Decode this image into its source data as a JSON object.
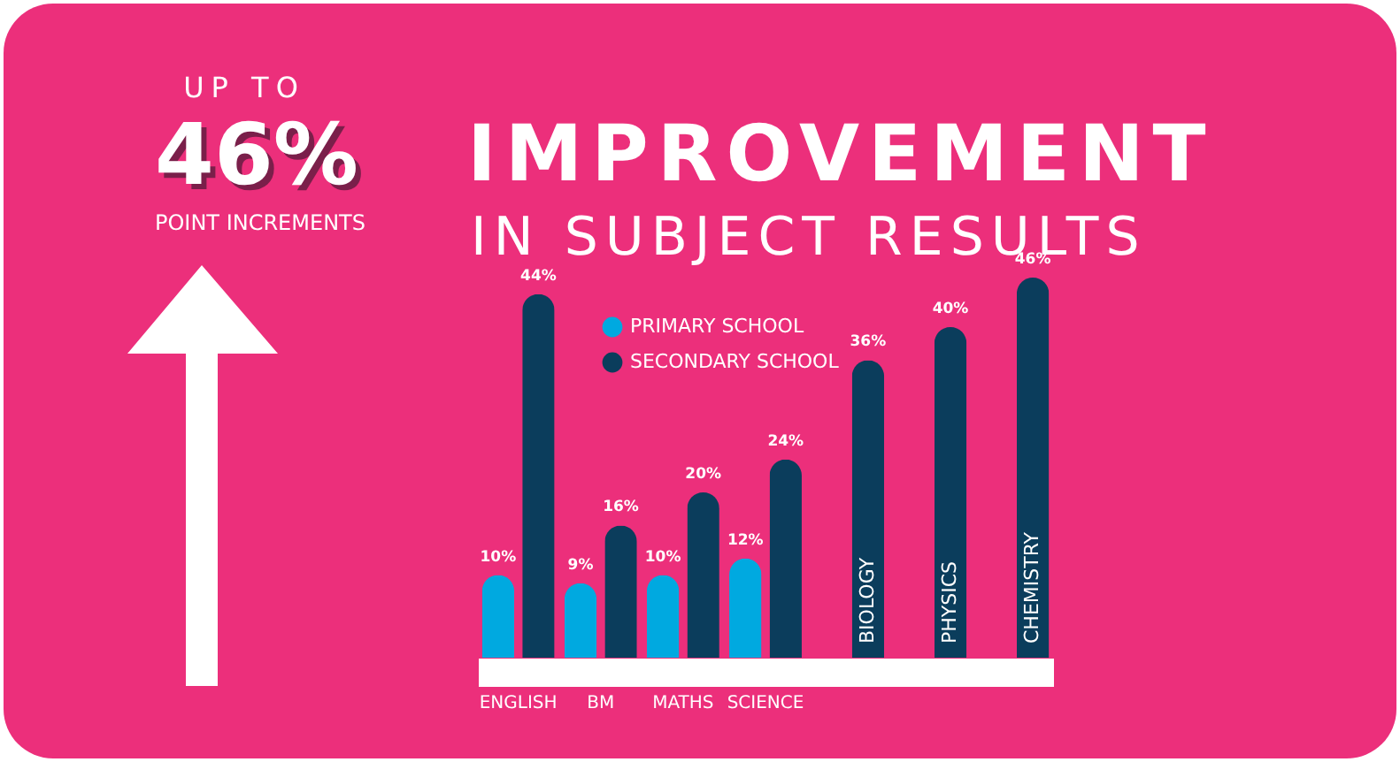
{
  "chart_data": {
    "type": "bar",
    "title": "IMPROVEMENT",
    "subtitle": "IN SUBJECT RESULTS",
    "annotations": [
      "UP TO",
      "46%",
      "POINT INCREMENTS"
    ],
    "categories": [
      "ENGLISH",
      "BM",
      "MATHS",
      "SCIENCE",
      "BIOLOGY",
      "PHYSICS",
      "CHEMISTRY"
    ],
    "series": [
      {
        "name": "PRIMARY SCHOOL",
        "color": "#00a9e0",
        "values": [
          10,
          9,
          10,
          12,
          null,
          null,
          null
        ],
        "value_labels": [
          "10%",
          "9%",
          "10%",
          "12%",
          null,
          null,
          null
        ]
      },
      {
        "name": "SECONDARY SCHOOL",
        "color": "#0b3d5c",
        "values": [
          44,
          16,
          20,
          24,
          36,
          40,
          46
        ],
        "value_labels": [
          "44%",
          "16%",
          "20%",
          "24%",
          "36%",
          "40%",
          "46%"
        ]
      }
    ],
    "legend": "top"
  }
}
